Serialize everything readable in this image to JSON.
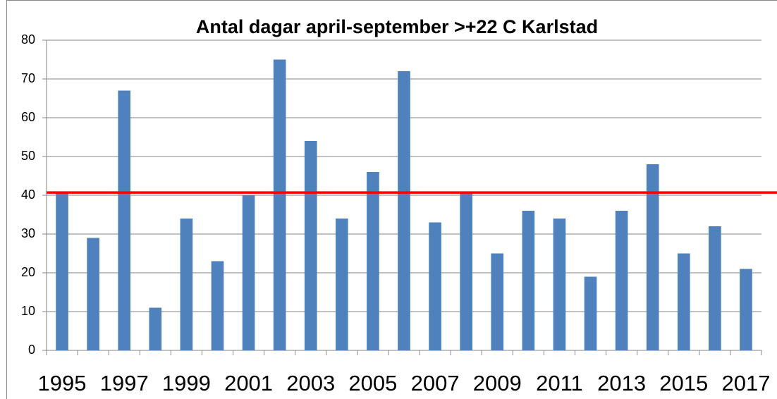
{
  "chart_data": {
    "type": "bar",
    "title": "Antal dagar april-september >+22 C Karlstad",
    "categories": [
      "1995",
      null,
      "1997",
      null,
      "1999",
      null,
      "2001",
      null,
      "2003",
      null,
      "2005",
      null,
      "2007",
      null,
      "2009",
      null,
      "2011",
      null,
      "2013",
      null,
      "2015",
      null,
      "2017"
    ],
    "values": [
      41,
      29,
      67,
      11,
      34,
      23,
      40,
      75,
      54,
      34,
      46,
      72,
      33,
      41,
      25,
      36,
      34,
      19,
      36,
      48,
      25,
      32,
      21
    ],
    "color": "#4f81bd",
    "ylim": [
      0,
      80
    ],
    "yticks": [
      0,
      10,
      20,
      30,
      40,
      50,
      60,
      70,
      80
    ],
    "grid": true,
    "reference_line": {
      "value": 40.7,
      "color": "#ff0000"
    }
  }
}
